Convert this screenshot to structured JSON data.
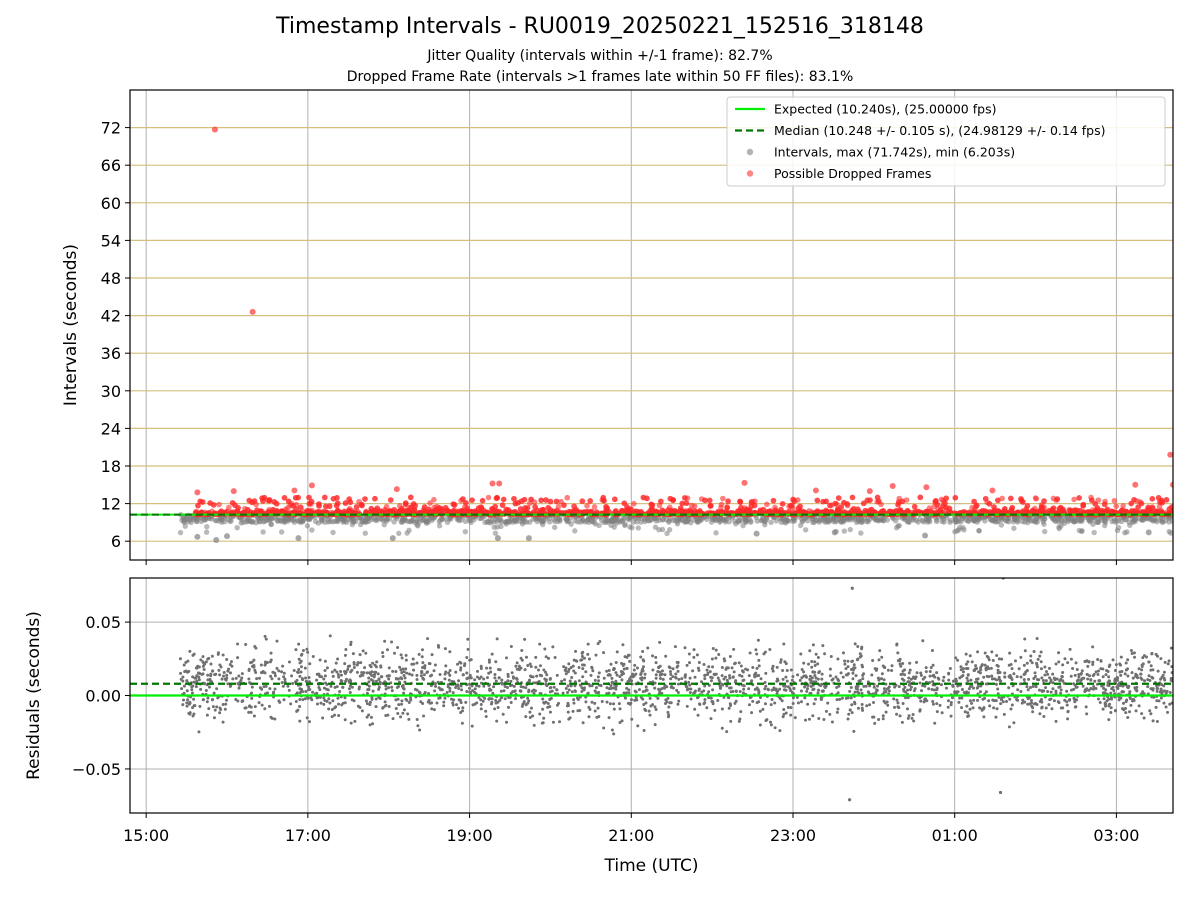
{
  "title": "Timestamp Intervals - RU0019_20250221_152516_318148",
  "subtitle_1": "Jitter Quality (intervals within +/-1 frame): 82.7%",
  "subtitle_2": "Dropped Frame Rate (intervals >1 frames late within 50 FF files): 83.1%",
  "chart_data": [
    {
      "type": "scatter",
      "xlabel": "",
      "ylabel": "Intervals (seconds)",
      "x_axis": "time (UTC, hours since 15:00 on 2025-02-21)",
      "xlim": [
        "14:48",
        "03:42"
      ],
      "ylim": [
        3,
        78
      ],
      "yticks": [
        6,
        12,
        18,
        24,
        30,
        36,
        42,
        48,
        54,
        60,
        66,
        72
      ],
      "grid": "x and y",
      "legend": {
        "position": "top-right",
        "entries": [
          {
            "label": "Expected (10.240s), (25.00000 fps)",
            "style": "solid line",
            "color": "#00ee00"
          },
          {
            "label": "Median (10.248 +/- 0.105 s), (24.98129 +/- 0.14 fps)",
            "style": "dashed line",
            "color": "#007700"
          },
          {
            "label": "Intervals, max (71.742s), min (6.203s)",
            "style": "marker",
            "color": "#808080"
          },
          {
            "label": "Possible Dropped Frames",
            "style": "marker",
            "color": "#ff3333"
          }
        ]
      },
      "expected_interval": 10.24,
      "median_interval": 10.248,
      "interval_max": 71.742,
      "interval_min": 6.203,
      "time_range": [
        "15:25",
        "03:42"
      ],
      "series": [
        {
          "name": "Possible Dropped Frames",
          "color": "#ff3333",
          "points": [
            {
              "x": "15:51",
              "y": 71.7
            },
            {
              "x": "16:19",
              "y": 42.6
            },
            {
              "x": "15:38",
              "y": 13.8
            },
            {
              "x": "16:05",
              "y": 14.0
            },
            {
              "x": "16:50",
              "y": 14.1
            },
            {
              "x": "17:03",
              "y": 14.9
            },
            {
              "x": "18:06",
              "y": 14.3
            },
            {
              "x": "19:17",
              "y": 15.2
            },
            {
              "x": "19:22",
              "y": 15.2
            },
            {
              "x": "22:24",
              "y": 15.3
            },
            {
              "x": "23:17",
              "y": 14.1
            },
            {
              "x": "23:57",
              "y": 14.0
            },
            {
              "x": "00:14",
              "y": 14.8
            },
            {
              "x": "00:39",
              "y": 14.6
            },
            {
              "x": "01:28",
              "y": 14.1
            },
            {
              "x": "03:14",
              "y": 15.0
            },
            {
              "x": "03:40",
              "y": 19.8
            },
            {
              "x": "03:42",
              "y": 15.0
            }
          ],
          "note": "dense band of points between roughly 10.3 and 13 s across the whole time range"
        },
        {
          "name": "Intervals, max (71.742s), min (6.203s)",
          "color": "#808080",
          "points": [
            {
              "x": "15:52",
              "y": 6.2
            },
            {
              "x": "15:38",
              "y": 6.7
            },
            {
              "x": "16:00",
              "y": 6.8
            },
            {
              "x": "16:53",
              "y": 6.5
            },
            {
              "x": "18:03",
              "y": 6.5
            },
            {
              "x": "19:21",
              "y": 6.5
            },
            {
              "x": "19:44",
              "y": 6.5
            },
            {
              "x": "22:33",
              "y": 7.2
            },
            {
              "x": "23:31",
              "y": 7.4
            },
            {
              "x": "00:38",
              "y": 6.9
            },
            {
              "x": "03:24",
              "y": 7.4
            }
          ],
          "note": "dense band of points between roughly 7 and 10.3 s"
        }
      ]
    },
    {
      "type": "scatter",
      "xlabel": "Time (UTC)",
      "ylabel": "Residuals (seconds)",
      "xlim": [
        "14:48",
        "03:42"
      ],
      "xticks": [
        "15:00",
        "17:00",
        "19:00",
        "21:00",
        "23:00",
        "01:00",
        "03:00"
      ],
      "ylim": [
        -0.08,
        0.08
      ],
      "yticks": [
        -0.05,
        0.0,
        0.05
      ],
      "ytick_labels": [
        "−0.05",
        "0.00",
        "0.05"
      ],
      "grid": "x and y",
      "reference_lines": [
        {
          "name": "Expected",
          "y": 0.0,
          "style": "solid",
          "color": "#00ee00"
        },
        {
          "name": "Median",
          "y": 0.008,
          "style": "dashed",
          "color": "#007700"
        }
      ],
      "series": [
        {
          "name": "Residuals",
          "color": "#707070",
          "spread_sd": 0.02,
          "point_count_approx": 2600,
          "extremes": [
            {
              "x": "23:42",
              "y": -0.071
            },
            {
              "x": "01:34",
              "y": -0.066
            },
            {
              "x": "23:44",
              "y": 0.073
            },
            {
              "x": "01:36",
              "y": 0.08
            }
          ]
        }
      ]
    }
  ]
}
